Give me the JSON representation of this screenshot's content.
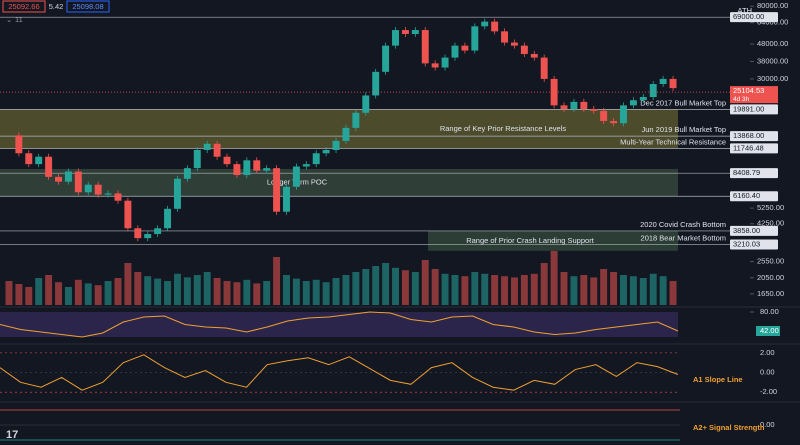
{
  "header": {
    "bid": "25092.66",
    "spread": "5.42",
    "ask": "25098.08",
    "indicators": "11"
  },
  "chart_data": {
    "type": "candlestick",
    "y_scale": "log",
    "ylim": [
      1420,
      87000
    ],
    "yticks": [
      {
        "value": 80000,
        "label": "80000.00"
      },
      {
        "value": 64000,
        "label": "64000.00"
      },
      {
        "value": 48000,
        "label": "48000.00"
      },
      {
        "value": 38000,
        "label": "38000.00"
      },
      {
        "value": 30000,
        "label": "30000.00"
      },
      {
        "value": 5250,
        "label": "5250.00"
      },
      {
        "value": 4250,
        "label": "4250.00"
      },
      {
        "value": 2550,
        "label": "2550.00"
      },
      {
        "value": 2050,
        "label": "2050.00"
      },
      {
        "value": 1650,
        "label": "1650.00"
      }
    ],
    "color_up": "#26a69a",
    "color_down": "#ef5350",
    "values": [
      14000,
      11000,
      9500,
      10500,
      8000,
      7500,
      8600,
      6500,
      7200,
      6300,
      6400,
      5800,
      4000,
      3500,
      3700,
      4000,
      5200,
      7800,
      9000,
      11500,
      12500,
      10500,
      9500,
      8200,
      10000,
      8700,
      9000,
      5000,
      7000,
      9200,
      9500,
      11000,
      11500,
      13000,
      15500,
      19000,
      24000,
      33000,
      47000,
      58000,
      55000,
      58000,
      37000,
      35000,
      40000,
      47000,
      44000,
      61000,
      65000,
      57000,
      49000,
      47000,
      42000,
      40000,
      30000,
      21000,
      20000,
      22000,
      20000,
      19500,
      17000,
      16500,
      21000,
      22500,
      23500,
      28000,
      30000,
      26500
    ],
    "volume": {
      "ylim": [
        0,
        100
      ],
      "values": [
        40,
        35,
        30,
        45,
        50,
        38,
        30,
        42,
        36,
        33,
        40,
        45,
        70,
        55,
        48,
        44,
        40,
        52,
        46,
        50,
        55,
        45,
        40,
        38,
        42,
        36,
        40,
        80,
        50,
        44,
        40,
        42,
        38,
        45,
        50,
        55,
        60,
        65,
        70,
        62,
        58,
        55,
        75,
        60,
        52,
        50,
        48,
        55,
        52,
        50,
        48,
        46,
        50,
        52,
        70,
        90,
        55,
        48,
        50,
        46,
        60,
        55,
        50,
        48,
        45,
        52,
        48,
        40
      ]
    },
    "levels": [
      {
        "value": 69000,
        "label": "69000.00",
        "name": "ATH"
      },
      {
        "value": 19891,
        "label": "19891.00",
        "name": "Dec 2017 Bull Market Top"
      },
      {
        "value": 13868,
        "label": "13868.00",
        "name": "Jun 2019 Bull Market Top"
      },
      {
        "value": 11746.48,
        "label": "11746.48",
        "name": "Multi-Year Technical Resistance"
      },
      {
        "value": 8408.79,
        "label": "8408.79"
      },
      {
        "value": 6160.4,
        "label": "6160.40"
      },
      {
        "value": 3858,
        "label": "3858.00",
        "name": "2020 Covid Crash Bottom"
      },
      {
        "value": 3210.03,
        "label": "3210.03",
        "name": "2018 Bear Market Bottom"
      }
    ],
    "zones": [
      {
        "label": "Range of Key Prior Resistance Levels",
        "high": 19891,
        "low": 11746.48,
        "color": "rgba(170,160,60,0.38)"
      },
      {
        "label": "Longer Term POC",
        "high": 8900,
        "low": 6160.4,
        "color": "rgba(110,150,100,0.32)"
      },
      {
        "label": "Range of Prior Crash Landing Support",
        "high": 3858,
        "low": 2950,
        "color": "rgba(100,150,100,0.30)"
      }
    ],
    "last_price": {
      "value": 25104.53,
      "label": "25104.53",
      "countdown": "4d 3h"
    }
  },
  "rsi": {
    "ylim": [
      20,
      86
    ],
    "ticks": [
      {
        "value": 80,
        "label": "80.00"
      }
    ],
    "last": {
      "value": 42,
      "label": "42.00"
    },
    "color": "#f0a030",
    "values": [
      55,
      45,
      40,
      35,
      30,
      38,
      60,
      70,
      72,
      55,
      50,
      48,
      40,
      50,
      62,
      68,
      70,
      75,
      80,
      78,
      65,
      60,
      70,
      72,
      55,
      50,
      40,
      35,
      38,
      45,
      50,
      55,
      60,
      42
    ]
  },
  "slope": {
    "title": "A1 Slope Line",
    "ylim": [
      -2.8,
      2.7
    ],
    "color": "#f0a030",
    "ticks": [
      {
        "value": 2,
        "label": "2.00"
      },
      {
        "value": 0,
        "label": "0.00"
      },
      {
        "value": -2,
        "label": "-2.00"
      }
    ],
    "values": [
      0.5,
      -1,
      -1.5,
      -0.5,
      -1.8,
      -1,
      1,
      1.8,
      0.5,
      -0.5,
      0.2,
      -1,
      -1.5,
      0.8,
      1.2,
      1.5,
      0.8,
      1.6,
      0.4,
      -0.8,
      -1.2,
      0.5,
      1,
      -0.5,
      -1.5,
      -1.8,
      -0.8,
      -1.2,
      0.3,
      0.8,
      -0.4,
      1,
      0.6,
      -0.2
    ]
  },
  "signal": {
    "title": "A2+ Signal Strength",
    "ticks": [
      {
        "value": 0,
        "label": "0.00"
      }
    ]
  }
}
